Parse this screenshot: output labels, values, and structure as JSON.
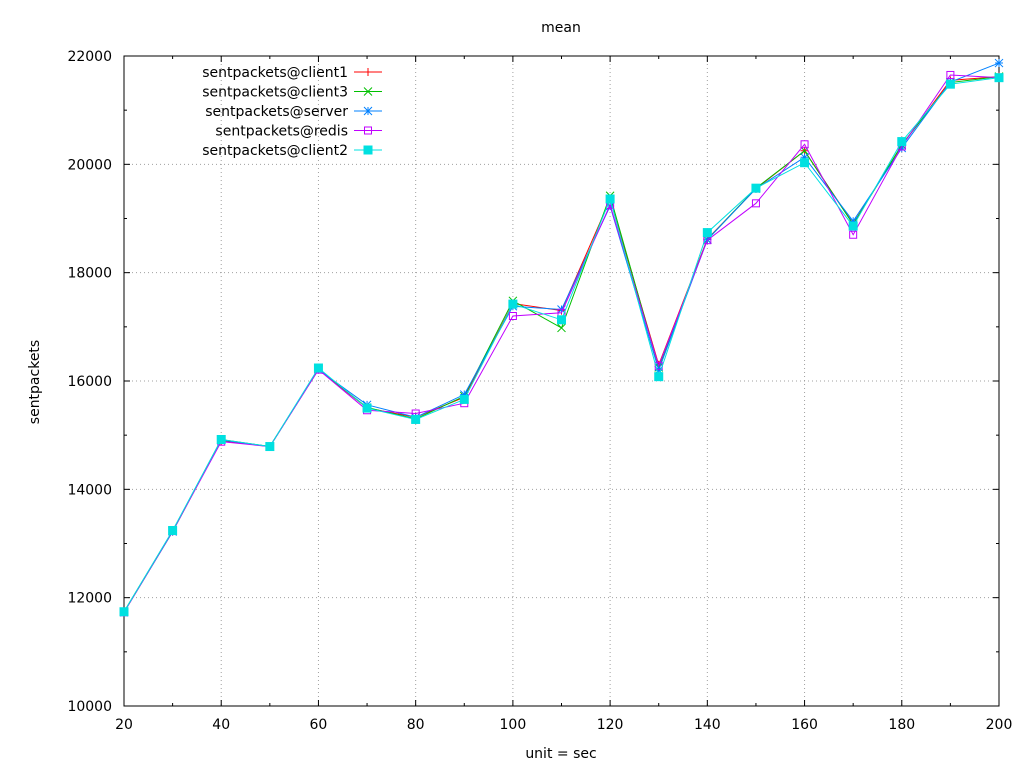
{
  "chart_data": {
    "type": "line",
    "title": "mean",
    "xlabel": "unit = sec",
    "ylabel": "sentpackets",
    "xlim": [
      20,
      200
    ],
    "ylim": [
      10000,
      22000
    ],
    "x_ticks": [
      "20",
      "40",
      "60",
      "80",
      "100",
      "120",
      "140",
      "160",
      "180",
      "200"
    ],
    "y_ticks": [
      "10000",
      "12000",
      "14000",
      "16000",
      "18000",
      "20000",
      "22000"
    ],
    "grid": true,
    "legend_position": "top-left",
    "x": [
      20,
      30,
      40,
      50,
      60,
      70,
      80,
      90,
      100,
      110,
      120,
      130,
      140,
      150,
      160,
      170,
      180,
      190,
      200
    ],
    "series": [
      {
        "name": "sentpackets@client1",
        "color": "#ff0000",
        "marker": "plus",
        "values": [
          11730,
          13220,
          14900,
          14790,
          16210,
          15500,
          15330,
          15700,
          17430,
          17300,
          19350,
          16300,
          18620,
          19550,
          20250,
          18900,
          20350,
          21550,
          21620
        ]
      },
      {
        "name": "sentpackets@client3",
        "color": "#00c000",
        "marker": "cross",
        "values": [
          11740,
          13230,
          14920,
          14790,
          16220,
          15510,
          15300,
          15720,
          17480,
          16980,
          19420,
          16250,
          18610,
          19560,
          20250,
          18890,
          20360,
          21510,
          21620
        ]
      },
      {
        "name": "sentpackets@server",
        "color": "#0080ff",
        "marker": "star",
        "values": [
          11730,
          13220,
          14910,
          14790,
          16210,
          15560,
          15330,
          15750,
          17380,
          17320,
          19230,
          16200,
          18610,
          19550,
          20130,
          18950,
          20300,
          21520,
          21870
        ]
      },
      {
        "name": "sentpackets@redis",
        "color": "#c000ff",
        "marker": "square",
        "values": [
          11730,
          13230,
          14880,
          14790,
          16210,
          15460,
          15400,
          15590,
          17200,
          17260,
          19250,
          16280,
          18600,
          19280,
          20370,
          18700,
          20330,
          21650,
          21600
        ]
      },
      {
        "name": "sentpackets@client2",
        "color": "#00e0e0",
        "marker": "filled-square",
        "values": [
          11740,
          13240,
          14920,
          14790,
          16240,
          15500,
          15290,
          15660,
          17420,
          17130,
          19360,
          16080,
          18740,
          19560,
          20030,
          18860,
          20420,
          21480,
          21600
        ]
      }
    ]
  }
}
